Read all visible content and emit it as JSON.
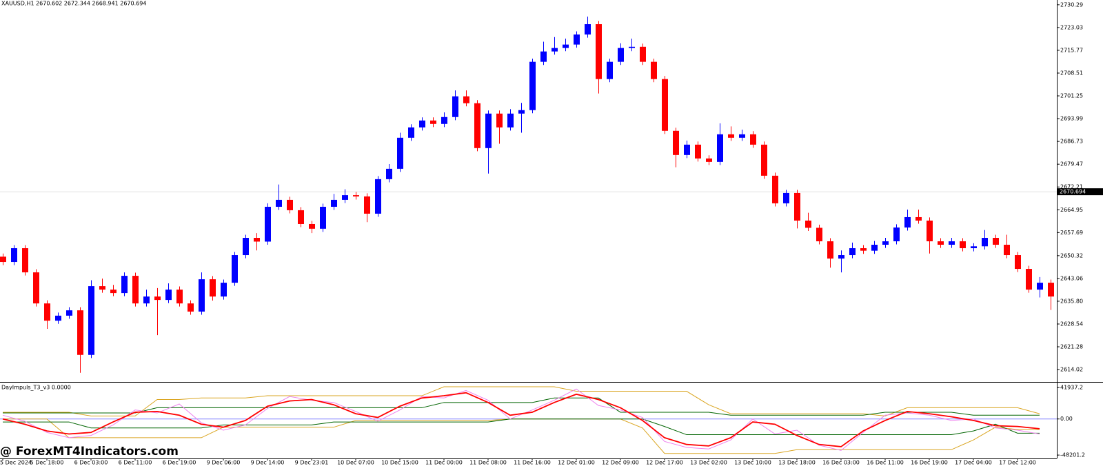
{
  "chart_data": [
    {
      "type": "candlestick",
      "title": "XAUUSD,H1  2670.602 2672.344 2668.941 2670.694",
      "up_color": "#0000ff",
      "down_color": "#ff0000",
      "ylim": [
        2610.3,
        2731.8
      ],
      "yticks": [
        2730.29,
        2723.03,
        2715.77,
        2708.51,
        2701.25,
        2693.99,
        2686.73,
        2679.47,
        2672.21,
        2664.95,
        2657.69,
        2650.32,
        2643.06,
        {
          "value": 2635.8,
          "label": "2635.80"
        },
        2628.54,
        2621.28,
        2614.02
      ],
      "current_price": 2670.694,
      "categories": [
        "5 Dec 2024",
        null,
        null,
        null,
        "5 Dec 18:00",
        null,
        null,
        null,
        "6 Dec 03:00",
        null,
        null,
        null,
        "6 Dec 11:00",
        null,
        null,
        null,
        "6 Dec 19:00",
        null,
        null,
        null,
        "9 Dec 06:00",
        null,
        null,
        null,
        "9 Dec 14:00",
        null,
        null,
        null,
        "9 Dec 23:01",
        null,
        null,
        null,
        "10 Dec 07:00",
        null,
        null,
        null,
        "10 Dec 15:00",
        null,
        null,
        null,
        "11 Dec 00:00",
        null,
        null,
        null,
        "11 Dec 08:00",
        null,
        null,
        null,
        "11 Dec 16:00",
        null,
        null,
        null,
        "12 Dec 01:00",
        null,
        null,
        null,
        "12 Dec 09:00",
        null,
        null,
        null,
        "12 Dec 17:00",
        null,
        null,
        null,
        "13 Dec 02:00",
        null,
        null,
        null,
        "13 Dec 10:00",
        null,
        null,
        null,
        "13 Dec 18:00",
        null,
        null,
        null,
        "16 Dec 03:00",
        null,
        null,
        null,
        "16 Dec 11:00",
        null,
        null,
        null,
        "16 Dec 19:00",
        null,
        null,
        null,
        "17 Dec 04:00",
        null,
        null,
        null,
        "17 Dec 12:00",
        null,
        null,
        null
      ],
      "ohlc": [
        [
          2650.0,
          2651.0,
          2647.3,
          2648.3
        ],
        [
          2648.3,
          2653.7,
          2647.3,
          2652.7
        ],
        [
          2652.7,
          2653.7,
          2644.0,
          2645.0
        ],
        [
          2645.0,
          2646.0,
          2634.1,
          2635.1
        ],
        [
          2635.1,
          2636.1,
          2627.0,
          2629.6
        ],
        [
          2629.6,
          2632.2,
          2628.6,
          2631.2
        ],
        [
          2631.2,
          2633.9,
          2630.2,
          2632.9
        ],
        [
          2632.9,
          2633.9,
          2613.0,
          2618.7
        ],
        [
          2618.7,
          2642.5,
          2617.7,
          2640.6
        ],
        [
          2640.6,
          2643.0,
          2638.5,
          2639.5
        ],
        [
          2639.5,
          2641.0,
          2637.4,
          2638.4
        ],
        [
          2638.4,
          2645.0,
          2637.4,
          2643.9
        ],
        [
          2643.9,
          2644.9,
          2634.1,
          2635.1
        ],
        [
          2635.1,
          2639.5,
          2634.1,
          2637.3
        ],
        [
          2637.3,
          2640.0,
          2625.0,
          2636.2
        ],
        [
          2636.2,
          2641.5,
          2635.2,
          2639.5
        ],
        [
          2639.5,
          2640.5,
          2634.1,
          2635.1
        ],
        [
          2635.1,
          2636.1,
          2631.5,
          2632.5
        ],
        [
          2632.5,
          2645.0,
          2631.5,
          2642.8
        ],
        [
          2642.8,
          2643.8,
          2636.0,
          2637.3
        ],
        [
          2637.3,
          2642.7,
          2636.3,
          2641.7
        ],
        [
          2641.7,
          2651.5,
          2640.7,
          2650.5
        ],
        [
          2650.5,
          2657.0,
          2649.5,
          2656.0
        ],
        [
          2656.0,
          2657.5,
          2652.0,
          2654.8
        ],
        [
          2654.8,
          2667.0,
          2653.8,
          2665.9
        ],
        [
          2665.9,
          2673.0,
          2664.9,
          2668.1
        ],
        [
          2668.1,
          2669.1,
          2663.8,
          2664.8
        ],
        [
          2664.8,
          2665.8,
          2659.4,
          2660.4
        ],
        [
          2660.4,
          2661.4,
          2657.5,
          2658.9
        ],
        [
          2658.9,
          2666.9,
          2657.9,
          2665.9
        ],
        [
          2665.9,
          2670.0,
          2664.9,
          2668.1
        ],
        [
          2668.1,
          2671.5,
          2667.1,
          2669.6
        ],
        [
          2669.6,
          2670.6,
          2668.2,
          2669.2
        ],
        [
          2669.2,
          2670.2,
          2661.0,
          2663.7
        ],
        [
          2663.7,
          2675.7,
          2662.7,
          2674.7
        ],
        [
          2674.7,
          2679.5,
          2673.7,
          2678.0
        ],
        [
          2678.0,
          2689.5,
          2677.0,
          2687.9
        ],
        [
          2687.9,
          2692.2,
          2686.9,
          2691.2
        ],
        [
          2691.2,
          2694.4,
          2690.2,
          2693.4
        ],
        [
          2693.4,
          2694.4,
          2691.3,
          2692.3
        ],
        [
          2692.3,
          2696.0,
          2691.3,
          2694.5
        ],
        [
          2694.5,
          2703.0,
          2693.5,
          2701.1
        ],
        [
          2701.1,
          2703.0,
          2697.9,
          2698.9
        ],
        [
          2698.9,
          2699.9,
          2683.6,
          2684.6
        ],
        [
          2684.6,
          2696.6,
          2676.5,
          2695.6
        ],
        [
          2695.6,
          2696.6,
          2686.0,
          2691.2
        ],
        [
          2691.2,
          2697.0,
          2690.2,
          2695.6
        ],
        [
          2695.6,
          2699.0,
          2689.5,
          2696.7
        ],
        [
          2696.7,
          2713.1,
          2695.7,
          2712.1
        ],
        [
          2712.1,
          2718.5,
          2711.1,
          2715.4
        ],
        [
          2715.4,
          2720.0,
          2714.4,
          2716.5
        ],
        [
          2716.5,
          2719.5,
          2715.5,
          2717.6
        ],
        [
          2717.6,
          2721.8,
          2716.6,
          2720.8
        ],
        [
          2720.8,
          2726.5,
          2719.8,
          2724.1
        ],
        [
          2724.1,
          2725.1,
          2702.0,
          2706.6
        ],
        [
          2706.6,
          2713.1,
          2705.6,
          2712.1
        ],
        [
          2712.1,
          2718.0,
          2711.1,
          2716.5
        ],
        [
          2716.5,
          2719.5,
          2715.5,
          2716.9
        ],
        [
          2716.9,
          2717.9,
          2711.1,
          2712.1
        ],
        [
          2712.1,
          2713.1,
          2705.6,
          2706.6
        ],
        [
          2706.6,
          2707.6,
          2689.1,
          2690.1
        ],
        [
          2690.1,
          2691.1,
          2678.5,
          2682.4
        ],
        [
          2682.4,
          2687.0,
          2681.4,
          2685.7
        ],
        [
          2685.7,
          2686.7,
          2680.3,
          2681.3
        ],
        [
          2681.3,
          2682.3,
          2679.2,
          2680.2
        ],
        [
          2680.2,
          2692.5,
          2679.2,
          2689.0
        ],
        [
          2689.0,
          2691.5,
          2686.9,
          2687.9
        ],
        [
          2687.9,
          2690.5,
          2686.9,
          2689.0
        ],
        [
          2689.0,
          2690.0,
          2684.7,
          2685.7
        ],
        [
          2685.7,
          2686.7,
          2674.8,
          2675.8
        ],
        [
          2675.8,
          2676.8,
          2666.0,
          2667.0
        ],
        [
          2667.0,
          2671.3,
          2666.0,
          2670.3
        ],
        [
          2670.3,
          2671.3,
          2659.0,
          2661.5
        ],
        [
          2661.5,
          2664.0,
          2658.2,
          2659.2
        ],
        [
          2659.2,
          2660.2,
          2653.9,
          2654.9
        ],
        [
          2654.9,
          2655.9,
          2646.5,
          2649.4
        ],
        [
          2649.4,
          2652.0,
          2645.0,
          2650.5
        ],
        [
          2650.5,
          2654.5,
          2649.5,
          2652.7
        ],
        [
          2652.7,
          2653.7,
          2650.9,
          2651.9
        ],
        [
          2651.9,
          2655.0,
          2650.9,
          2653.8
        ],
        [
          2653.8,
          2656.0,
          2652.8,
          2654.9
        ],
        [
          2654.9,
          2660.3,
          2653.9,
          2659.3
        ],
        [
          2659.3,
          2665.0,
          2658.3,
          2662.6
        ],
        [
          2662.6,
          2665.0,
          2660.5,
          2661.5
        ],
        [
          2661.5,
          2662.5,
          2651.0,
          2654.9
        ],
        [
          2654.9,
          2655.9,
          2652.8,
          2653.8
        ],
        [
          2653.8,
          2656.0,
          2652.8,
          2654.9
        ],
        [
          2654.9,
          2655.9,
          2651.7,
          2652.7
        ],
        [
          2652.7,
          2654.3,
          2651.7,
          2653.3
        ],
        [
          2653.3,
          2658.5,
          2652.3,
          2656.0
        ],
        [
          2656.0,
          2657.0,
          2652.8,
          2653.8
        ],
        [
          2653.8,
          2657.0,
          2649.5,
          2650.5
        ],
        [
          2650.5,
          2651.5,
          2645.1,
          2646.1
        ],
        [
          2646.1,
          2647.1,
          2638.5,
          2639.5
        ],
        [
          2639.5,
          2643.5,
          2637.0,
          2641.7
        ],
        [
          2641.7,
          2642.7,
          2633.0,
          2637.3
        ]
      ]
    },
    {
      "type": "line",
      "title": "DayImpuls_T3_v3 0.0000",
      "ylim": [
        -52700,
        47600
      ],
      "yticks": [
        41937.2,
        {
          "value": 0,
          "label": "0.00"
        },
        -48201.2
      ],
      "zero_line_color": "#8080ff",
      "series": [
        {
          "color": "#daa520",
          "values": [
            9000,
            9000,
            9000,
            9000,
            4000,
            4000,
            4000,
            26000,
            26000,
            28000,
            28000,
            28000,
            31000,
            31000,
            31000,
            31000,
            31000,
            31000,
            31000,
            31000,
            43000,
            43000,
            43000,
            43000,
            43000,
            43000,
            37000,
            37000,
            37000,
            37000,
            37000,
            37000,
            19000,
            7000,
            7000,
            7000,
            7000,
            7000,
            7000,
            7000,
            4000,
            15000,
            15000,
            15000,
            15000,
            15000,
            15000,
            7000
          ]
        },
        {
          "color": "#daa520",
          "values": [
            0,
            0,
            0,
            -25000,
            -25000,
            -25000,
            -25000,
            -25000,
            -25000,
            -25000,
            -11000,
            -11000,
            -11000,
            -11000,
            -11000,
            -11000,
            -2000,
            -2000,
            -2000,
            -2000,
            -2000,
            -2000,
            -2000,
            0,
            0,
            0,
            0,
            0,
            0,
            -12000,
            -46000,
            -46000,
            -46000,
            -46000,
            -46000,
            -46000,
            -41000,
            -41000,
            -41000,
            -41000,
            -41000,
            -41000,
            -41000,
            -41000,
            -28000,
            -11000,
            -14000,
            -14000
          ]
        },
        {
          "color": "#006400",
          "values": [
            8000,
            8000,
            8000,
            8000,
            8000,
            8000,
            8000,
            15000,
            15000,
            15000,
            15000,
            15000,
            15000,
            15000,
            15000,
            15000,
            15000,
            15000,
            15000,
            15000,
            22000,
            22000,
            22000,
            22000,
            22000,
            28000,
            28000,
            28000,
            9000,
            9000,
            9000,
            9000,
            9000,
            5000,
            5000,
            5000,
            5000,
            5000,
            5000,
            5000,
            9000,
            9000,
            9000,
            9000,
            5000,
            5000,
            5000,
            5000
          ]
        },
        {
          "color": "#006400",
          "values": [
            -4000,
            -4000,
            -4000,
            -4000,
            -12000,
            -12000,
            -12000,
            -12000,
            -12000,
            -12000,
            -8000,
            -8000,
            -8000,
            -8000,
            -8000,
            -4000,
            -4000,
            -4000,
            -4000,
            -4000,
            -4000,
            -4000,
            -4000,
            0,
            0,
            0,
            0,
            0,
            0,
            0,
            -10000,
            -21000,
            -21000,
            -21000,
            -21000,
            -21000,
            -21000,
            -21000,
            -21000,
            -21000,
            -21000,
            -21000,
            -21000,
            -21000,
            -16000,
            -7000,
            -19000,
            -19000
          ]
        },
        {
          "color": "#ee82ee",
          "values": [
            5000,
            -3000,
            -18000,
            -25000,
            -22000,
            -8000,
            12000,
            8000,
            20000,
            -5000,
            -15000,
            -8000,
            14000,
            30000,
            25000,
            22000,
            10000,
            -3000,
            12000,
            30000,
            28000,
            38000,
            25000,
            0,
            12000,
            25000,
            40000,
            18000,
            12000,
            2000,
            -30000,
            -38000,
            -40000,
            -28000,
            0,
            -20000,
            -15000,
            -35000,
            -42000,
            -18000,
            5000,
            8000,
            5000,
            -2000,
            0,
            -12000,
            -15000,
            -20000
          ]
        },
        {
          "color": "#ff0000",
          "values": [
            0,
            -7000,
            -16000,
            -20000,
            -18000,
            -4000,
            9000,
            10000,
            5000,
            -7000,
            -11000,
            -2000,
            17000,
            24000,
            26000,
            19000,
            7000,
            2000,
            17000,
            28000,
            31000,
            35000,
            22000,
            5000,
            9000,
            22000,
            33000,
            26000,
            15000,
            -2000,
            -25000,
            -34000,
            -36000,
            -25000,
            -4000,
            -7000,
            -22000,
            -34000,
            -37000,
            -16000,
            -2000,
            10000,
            7000,
            3000,
            -2000,
            -9000,
            -10000,
            -13000
          ]
        }
      ]
    }
  ],
  "watermark": "@ ForexMT4Indicators.com"
}
